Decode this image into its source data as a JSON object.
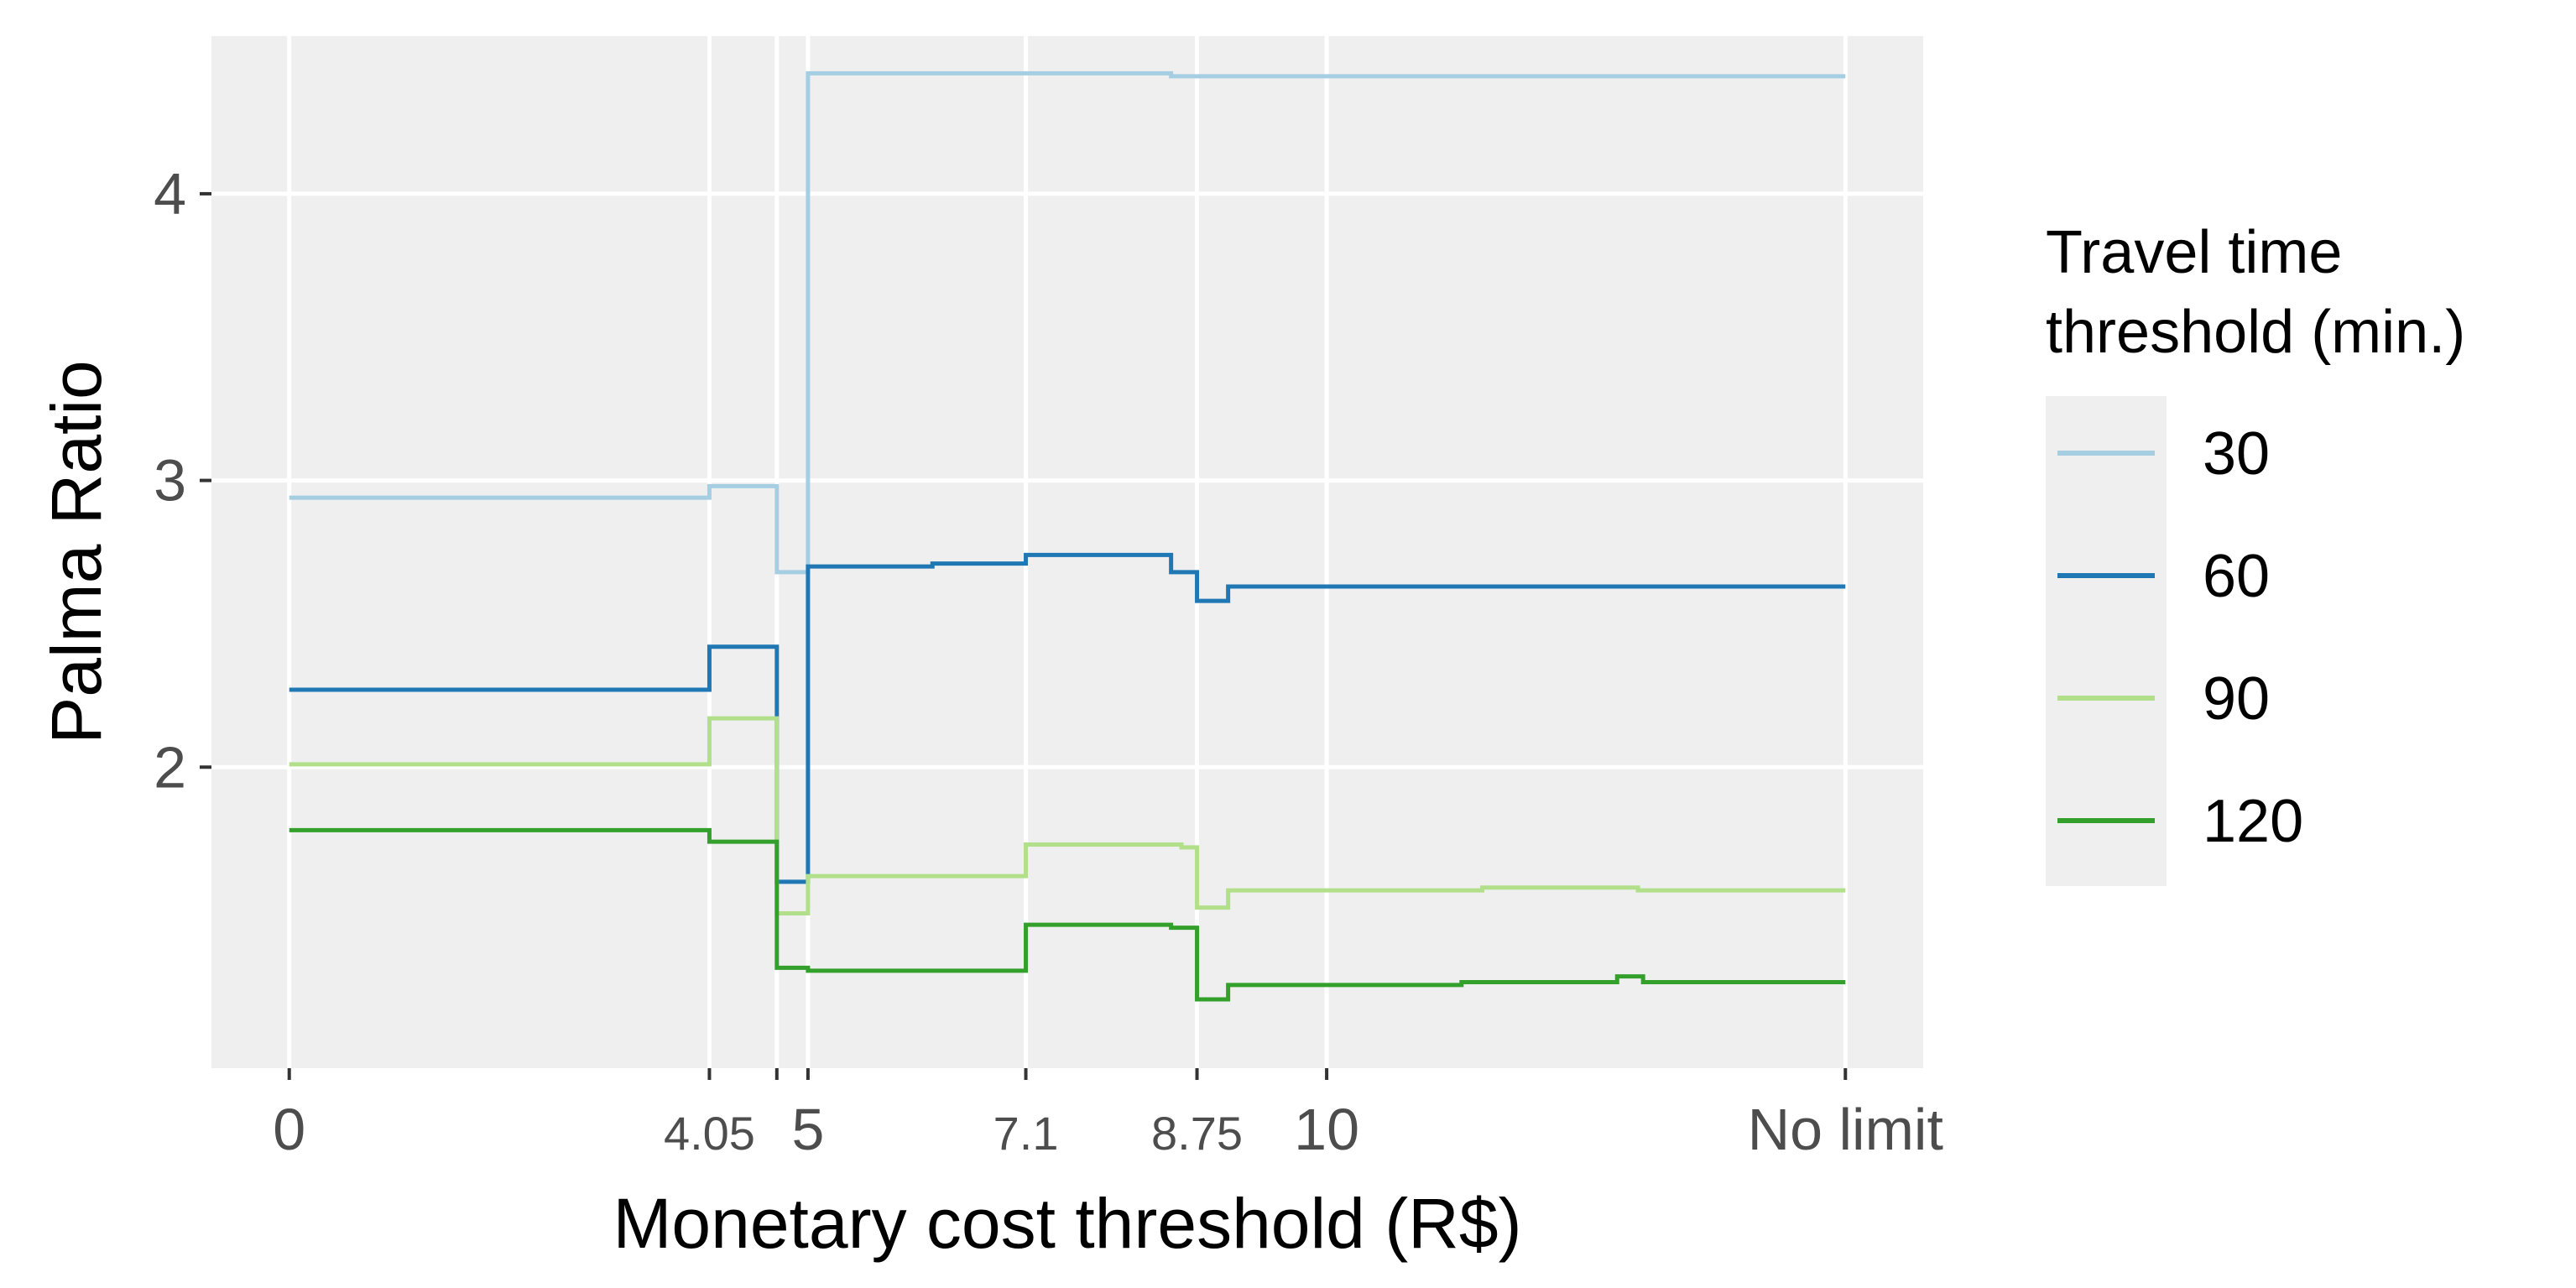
{
  "chart_data": {
    "type": "line",
    "step": true,
    "xlabel": "Monetary cost threshold (R$)",
    "ylabel": "Palma Ratio",
    "x_ticks": [
      {
        "value": 0,
        "label": "0",
        "size": "major"
      },
      {
        "value": 4.05,
        "label": "4.05",
        "size": "minor"
      },
      {
        "value": 4.7,
        "label": "",
        "size": "minor"
      },
      {
        "value": 5,
        "label": "5",
        "size": "major"
      },
      {
        "value": 7.1,
        "label": "7.1",
        "size": "minor"
      },
      {
        "value": 8.75,
        "label": "8.75",
        "size": "minor"
      },
      {
        "value": 10,
        "label": "10",
        "size": "major"
      },
      {
        "value": 15,
        "label": "No limit",
        "size": "major"
      }
    ],
    "y_ticks": [
      {
        "value": 2,
        "label": "2"
      },
      {
        "value": 3,
        "label": "3"
      },
      {
        "value": 4,
        "label": "4"
      }
    ],
    "xlim": [
      -0.75,
      15.75
    ],
    "ylim": [
      0.95,
      4.55
    ],
    "grid": true,
    "panel_background": "#efefef",
    "legend": {
      "title_lines": [
        "Travel time",
        "threshold (min.)"
      ],
      "placement": "right"
    },
    "series": [
      {
        "name": "30",
        "color": "#a6cee3",
        "points": [
          [
            0,
            2.94
          ],
          [
            4.05,
            2.98
          ],
          [
            4.7,
            2.68
          ],
          [
            5,
            4.42
          ],
          [
            8.5,
            4.41
          ],
          [
            15,
            4.41
          ]
        ]
      },
      {
        "name": "60",
        "color": "#1f78b4",
        "points": [
          [
            0,
            2.27
          ],
          [
            4.05,
            2.42
          ],
          [
            4.7,
            1.6
          ],
          [
            5,
            2.7
          ],
          [
            6.2,
            2.71
          ],
          [
            7.1,
            2.74
          ],
          [
            8.5,
            2.68
          ],
          [
            8.75,
            2.58
          ],
          [
            9.05,
            2.63
          ],
          [
            15,
            2.63
          ]
        ]
      },
      {
        "name": "90",
        "color": "#b2df8a",
        "points": [
          [
            0,
            2.01
          ],
          [
            4.05,
            2.17
          ],
          [
            4.7,
            1.49
          ],
          [
            5,
            1.62
          ],
          [
            7.1,
            1.73
          ],
          [
            8.6,
            1.72
          ],
          [
            8.75,
            1.51
          ],
          [
            9.05,
            1.57
          ],
          [
            11.5,
            1.58
          ],
          [
            12.2,
            1.58
          ],
          [
            13,
            1.57
          ],
          [
            15,
            1.57
          ]
        ]
      },
      {
        "name": "120",
        "color": "#33a02c",
        "points": [
          [
            0,
            1.78
          ],
          [
            4.05,
            1.74
          ],
          [
            4.7,
            1.3
          ],
          [
            5,
            1.29
          ],
          [
            7.1,
            1.45
          ],
          [
            8.5,
            1.44
          ],
          [
            8.75,
            1.19
          ],
          [
            9.05,
            1.24
          ],
          [
            10.8,
            1.24
          ],
          [
            11.3,
            1.25
          ],
          [
            12.3,
            1.25
          ],
          [
            12.8,
            1.27
          ],
          [
            13.05,
            1.25
          ],
          [
            15,
            1.25
          ]
        ]
      }
    ]
  }
}
